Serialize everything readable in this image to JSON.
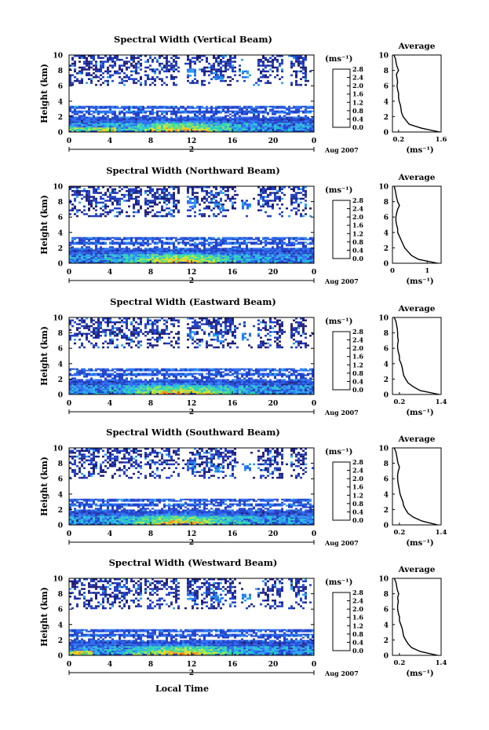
{
  "colors": {
    "scale": [
      "#20207a",
      "#2040c8",
      "#2a6cf0",
      "#2aa0f0",
      "#20c8d0",
      "#30d8a0",
      "#70e070",
      "#c0e840",
      "#f0d020",
      "#f09020",
      "#e84020",
      "#c01818"
    ],
    "line": "#000000"
  },
  "shared": {
    "x_ticks": [
      "0",
      "4",
      "8",
      "12",
      "16",
      "20",
      "0"
    ],
    "date_marker": "2",
    "date_label": "Aug 2007",
    "height_label": "Height (km)",
    "y_ticks": [
      "0",
      "2",
      "4",
      "6",
      "8",
      "10"
    ],
    "colorbar_unit": "(ms⁻¹)",
    "colorbar_ticks": [
      "0.0",
      "0.4",
      "0.8",
      "1.2",
      "1.6",
      "2.0",
      "2.4",
      "2.8"
    ],
    "avg_title": "Average",
    "avg_unit": "(ms⁻¹)",
    "local_time_label": "Local Time"
  },
  "chart_data": [
    {
      "type": "heatmap",
      "title": "Spectral Width (Vertical Beam)",
      "xlabel": "",
      "ylabel": "Height (km)",
      "xlim": [
        0,
        24
      ],
      "ylim": [
        0,
        10
      ],
      "colorbar_range": [
        0.0,
        2.8
      ],
      "profile": {
        "title": "Average",
        "xticks": [
          "0.2",
          "1.6"
        ],
        "xlim": [
          0,
          1.6
        ],
        "heights": [
          0,
          0.5,
          1,
          1.5,
          2,
          2.5,
          3,
          3.5,
          4,
          4.5,
          5,
          5.5,
          6,
          6.5,
          7,
          7.5,
          8,
          8.5,
          9,
          9.5,
          10
        ],
        "values": [
          1.55,
          0.95,
          0.55,
          0.45,
          0.35,
          0.3,
          0.28,
          0.26,
          0.22,
          0.2,
          0.2,
          0.17,
          0.15,
          0.17,
          0.15,
          0.13,
          0.2,
          0.15,
          0.12,
          0.1,
          0.05
        ]
      }
    },
    {
      "type": "heatmap",
      "title": "Spectral Width (Northward Beam)",
      "xlabel": "",
      "ylabel": "Height (km)",
      "xlim": [
        0,
        24
      ],
      "ylim": [
        0,
        10
      ],
      "colorbar_range": [
        0.0,
        2.8
      ],
      "profile": {
        "title": "Average",
        "xticks": [
          "0",
          "1"
        ],
        "xlim": [
          0,
          1.4
        ],
        "heights": [
          0,
          0.5,
          1,
          1.5,
          2,
          2.5,
          3,
          3.5,
          4,
          4.5,
          5,
          5.5,
          6,
          6.5,
          7,
          7.5,
          8,
          8.5,
          9,
          9.5,
          10
        ],
        "values": [
          1.3,
          0.75,
          0.55,
          0.45,
          0.35,
          0.3,
          0.25,
          0.2,
          0.15,
          0.15,
          0.12,
          0.1,
          0.1,
          0.12,
          0.15,
          0.2,
          0.15,
          0.12,
          0.1,
          0.08,
          0.05
        ]
      }
    },
    {
      "type": "heatmap",
      "title": "Spectral Width (Eastward Beam)",
      "xlabel": "",
      "ylabel": "Height (km)",
      "xlim": [
        0,
        24
      ],
      "ylim": [
        0,
        10
      ],
      "colorbar_range": [
        0.0,
        2.8
      ],
      "profile": {
        "title": "Average",
        "xticks": [
          "0.2",
          "1.4"
        ],
        "xlim": [
          0,
          1.4
        ],
        "heights": [
          0,
          0.5,
          1,
          1.5,
          2,
          2.5,
          3,
          3.5,
          4,
          4.5,
          5,
          5.5,
          6,
          6.5,
          7,
          7.5,
          8,
          8.5,
          9,
          9.5,
          10
        ],
        "values": [
          1.35,
          0.8,
          0.6,
          0.45,
          0.38,
          0.32,
          0.3,
          0.28,
          0.25,
          0.2,
          0.2,
          0.17,
          0.15,
          0.15,
          0.17,
          0.15,
          0.15,
          0.14,
          0.12,
          0.1,
          0.05
        ]
      }
    },
    {
      "type": "heatmap",
      "title": "Spectral Width (Southward Beam)",
      "xlabel": "",
      "ylabel": "Height (km)",
      "xlim": [
        0,
        24
      ],
      "ylim": [
        0,
        10
      ],
      "colorbar_range": [
        0.0,
        2.8
      ],
      "profile": {
        "title": "Average",
        "xticks": [
          "0.2",
          "1.4"
        ],
        "xlim": [
          0,
          1.4
        ],
        "heights": [
          0,
          0.5,
          1,
          1.5,
          2,
          2.5,
          3,
          3.5,
          4,
          4.5,
          5,
          5.5,
          6,
          6.5,
          7,
          7.5,
          8,
          8.5,
          9,
          9.5,
          10
        ],
        "values": [
          1.3,
          0.85,
          0.6,
          0.45,
          0.38,
          0.32,
          0.3,
          0.26,
          0.22,
          0.2,
          0.18,
          0.16,
          0.15,
          0.15,
          0.17,
          0.2,
          0.16,
          0.14,
          0.12,
          0.1,
          0.05
        ]
      }
    },
    {
      "type": "heatmap",
      "title": "Spectral Width (Westward Beam)",
      "xlabel": "Local Time",
      "ylabel": "Height (km)",
      "xlim": [
        0,
        24
      ],
      "ylim": [
        0,
        10
      ],
      "colorbar_range": [
        0.0,
        2.8
      ],
      "profile": {
        "title": "Average",
        "xticks": [
          "0.2",
          "1.4"
        ],
        "xlim": [
          0,
          1.4
        ],
        "heights": [
          0,
          0.5,
          1,
          1.5,
          2,
          2.5,
          3,
          3.5,
          4,
          4.5,
          5,
          5.5,
          6,
          6.5,
          7,
          7.5,
          8,
          8.5,
          9,
          9.5,
          10
        ],
        "values": [
          1.3,
          0.8,
          0.55,
          0.45,
          0.38,
          0.32,
          0.3,
          0.28,
          0.24,
          0.2,
          0.2,
          0.17,
          0.15,
          0.15,
          0.17,
          0.15,
          0.18,
          0.14,
          0.12,
          0.1,
          0.05
        ]
      }
    }
  ]
}
